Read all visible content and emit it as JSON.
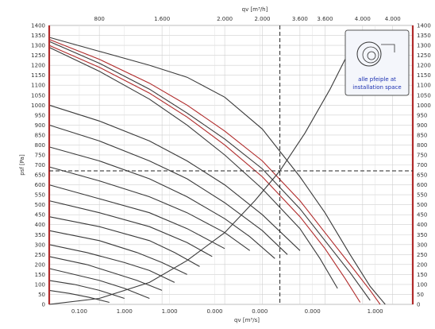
{
  "chart_data": {
    "type": "line",
    "title": "",
    "xlabel_top": "qv [m³/h]",
    "xlabel_bottom": "qv [m³/s]",
    "ylabel": "psf [Pa]",
    "x_top_ticks": [
      "800",
      "1.600",
      "2.000",
      "2.000",
      "3.600",
      "3.600",
      "4.000",
      "4.000"
    ],
    "x_top_tick_values": [
      0.2,
      0.45,
      0.7,
      0.85,
      1.0,
      1.1,
      1.25,
      1.37
    ],
    "x_bottom_ticks": [
      "0.100",
      "1.000",
      "1.000",
      "0.000",
      "0.000",
      "0.000",
      "1.000"
    ],
    "x_bottom_tick_values": [
      0.12,
      0.3,
      0.48,
      0.66,
      0.84,
      1.05,
      1.3
    ],
    "y_ticks": [
      "1400",
      "1350",
      "1300",
      "1250",
      "1200",
      "1150",
      "1100",
      "1050",
      "1000",
      "950",
      "900",
      "850",
      "800",
      "750",
      "700",
      "650",
      "600",
      "550",
      "500",
      "450",
      "400",
      "350",
      "300",
      "250",
      "200",
      "150",
      "100",
      "50",
      "0"
    ],
    "xlim": [
      0,
      1.45
    ],
    "ylim": [
      0,
      1400
    ],
    "grid": true,
    "operating_point": {
      "x": 0.92,
      "y": 670
    },
    "legend_placement": "top-right",
    "inset_label_line1": "alle pfeiple at",
    "inset_label_line2": "installation space",
    "series": [
      {
        "color": "#3a3a3a",
        "x": [
          0.0,
          0.2,
          0.4,
          0.55,
          0.7,
          0.85,
          1.0,
          1.1,
          1.2,
          1.28,
          1.34
        ],
        "y": [
          1340,
          1270,
          1200,
          1140,
          1040,
          880,
          640,
          460,
          250,
          90,
          0
        ]
      },
      {
        "color": "#b02a2a",
        "x": [
          0.0,
          0.2,
          0.4,
          0.55,
          0.7,
          0.85,
          1.0,
          1.1,
          1.2,
          1.28,
          1.32
        ],
        "y": [
          1330,
          1230,
          1110,
          1000,
          870,
          720,
          520,
          360,
          200,
          70,
          0
        ]
      },
      {
        "color": "#3a3a3a",
        "x": [
          0.0,
          0.2,
          0.4,
          0.55,
          0.7,
          0.85,
          1.0,
          1.1,
          1.2,
          1.28
        ],
        "y": [
          1320,
          1210,
          1080,
          960,
          830,
          680,
          480,
          320,
          160,
          20
        ]
      },
      {
        "color": "#b02a2a",
        "x": [
          0.0,
          0.2,
          0.4,
          0.55,
          0.7,
          0.85,
          1.0,
          1.1,
          1.18,
          1.24
        ],
        "y": [
          1300,
          1190,
          1060,
          940,
          800,
          640,
          440,
          280,
          130,
          10
        ]
      },
      {
        "color": "#3a3a3a",
        "x": [
          0.0,
          0.2,
          0.4,
          0.55,
          0.7,
          0.85,
          1.0,
          1.08,
          1.15
        ],
        "y": [
          1290,
          1170,
          1030,
          900,
          750,
          580,
          380,
          230,
          80
        ]
      },
      {
        "color": "#3a3a3a",
        "x": [
          0.0,
          0.2,
          0.4,
          0.55,
          0.7,
          0.85,
          1.0
        ],
        "y": [
          1000,
          920,
          820,
          720,
          600,
          450,
          270
        ]
      },
      {
        "color": "#3a3a3a",
        "x": [
          0.0,
          0.2,
          0.4,
          0.55,
          0.7,
          0.85,
          0.95
        ],
        "y": [
          900,
          820,
          720,
          630,
          510,
          370,
          250
        ]
      },
      {
        "color": "#3a3a3a",
        "x": [
          0.0,
          0.2,
          0.4,
          0.55,
          0.7,
          0.8,
          0.9
        ],
        "y": [
          790,
          720,
          630,
          540,
          430,
          340,
          230
        ]
      },
      {
        "color": "#3a3a3a",
        "x": [
          0.0,
          0.2,
          0.4,
          0.55,
          0.7,
          0.8
        ],
        "y": [
          690,
          620,
          540,
          460,
          360,
          270
        ]
      },
      {
        "color": "#3a3a3a",
        "x": [
          0.0,
          0.2,
          0.4,
          0.55,
          0.7
        ],
        "y": [
          600,
          530,
          460,
          380,
          280
        ]
      },
      {
        "color": "#3a3a3a",
        "x": [
          0.0,
          0.2,
          0.4,
          0.55,
          0.65
        ],
        "y": [
          520,
          460,
          390,
          310,
          240
        ]
      },
      {
        "color": "#3a3a3a",
        "x": [
          0.0,
          0.2,
          0.4,
          0.5,
          0.6
        ],
        "y": [
          440,
          390,
          320,
          260,
          190
        ]
      },
      {
        "color": "#3a3a3a",
        "x": [
          0.0,
          0.2,
          0.35,
          0.45,
          0.55
        ],
        "y": [
          370,
          320,
          260,
          210,
          150
        ]
      },
      {
        "color": "#3a3a3a",
        "x": [
          0.0,
          0.15,
          0.3,
          0.4,
          0.5
        ],
        "y": [
          300,
          260,
          210,
          170,
          110
        ]
      },
      {
        "color": "#3a3a3a",
        "x": [
          0.0,
          0.15,
          0.25,
          0.35,
          0.45
        ],
        "y": [
          240,
          200,
          160,
          120,
          70
        ]
      },
      {
        "color": "#3a3a3a",
        "x": [
          0.0,
          0.1,
          0.2,
          0.3,
          0.4
        ],
        "y": [
          180,
          150,
          120,
          80,
          30
        ]
      },
      {
        "color": "#3a3a3a",
        "x": [
          0.0,
          0.1,
          0.2,
          0.3
        ],
        "y": [
          120,
          100,
          70,
          30
        ]
      },
      {
        "color": "#3a3a3a",
        "x": [
          0.0,
          0.08,
          0.16,
          0.24
        ],
        "y": [
          70,
          55,
          35,
          10
        ]
      },
      {
        "color": "#3a3a3a",
        "x": [
          0.0,
          0.2,
          0.4,
          0.55,
          0.7,
          0.82,
          0.92,
          1.02,
          1.12,
          1.22
        ],
        "y": [
          0,
          30,
          110,
          220,
          360,
          520,
          670,
          860,
          1080,
          1330
        ]
      }
    ]
  }
}
